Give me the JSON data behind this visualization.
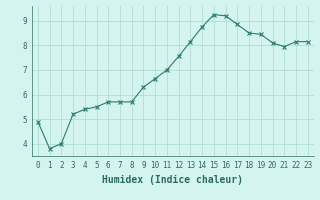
{
  "x": [
    0,
    1,
    2,
    3,
    4,
    5,
    6,
    7,
    8,
    9,
    10,
    11,
    12,
    13,
    14,
    15,
    16,
    17,
    18,
    19,
    20,
    21,
    22,
    23
  ],
  "y": [
    4.9,
    3.8,
    4.0,
    5.2,
    5.4,
    5.5,
    5.7,
    5.7,
    5.7,
    6.3,
    6.65,
    7.0,
    7.55,
    8.15,
    8.75,
    9.25,
    9.2,
    8.85,
    8.5,
    8.45,
    8.1,
    7.95,
    8.15,
    8.15
  ],
  "xlabel": "Humidex (Indice chaleur)",
  "line_color": "#2d7a6e",
  "marker": "x",
  "markersize": 3,
  "linewidth": 0.8,
  "bg_color": "#d4f5ef",
  "grid_color": "#aad8d0",
  "ylim": [
    3.5,
    9.6
  ],
  "xlim": [
    -0.5,
    23.5
  ],
  "yticks": [
    4,
    5,
    6,
    7,
    8,
    9
  ],
  "xticks": [
    0,
    1,
    2,
    3,
    4,
    5,
    6,
    7,
    8,
    9,
    10,
    11,
    12,
    13,
    14,
    15,
    16,
    17,
    18,
    19,
    20,
    21,
    22,
    23
  ],
  "tick_label_fontsize": 5.5,
  "xlabel_fontsize": 7,
  "tick_color": "#2d6b60",
  "label_color": "#2d6b60",
  "spine_color": "#2d6b60"
}
